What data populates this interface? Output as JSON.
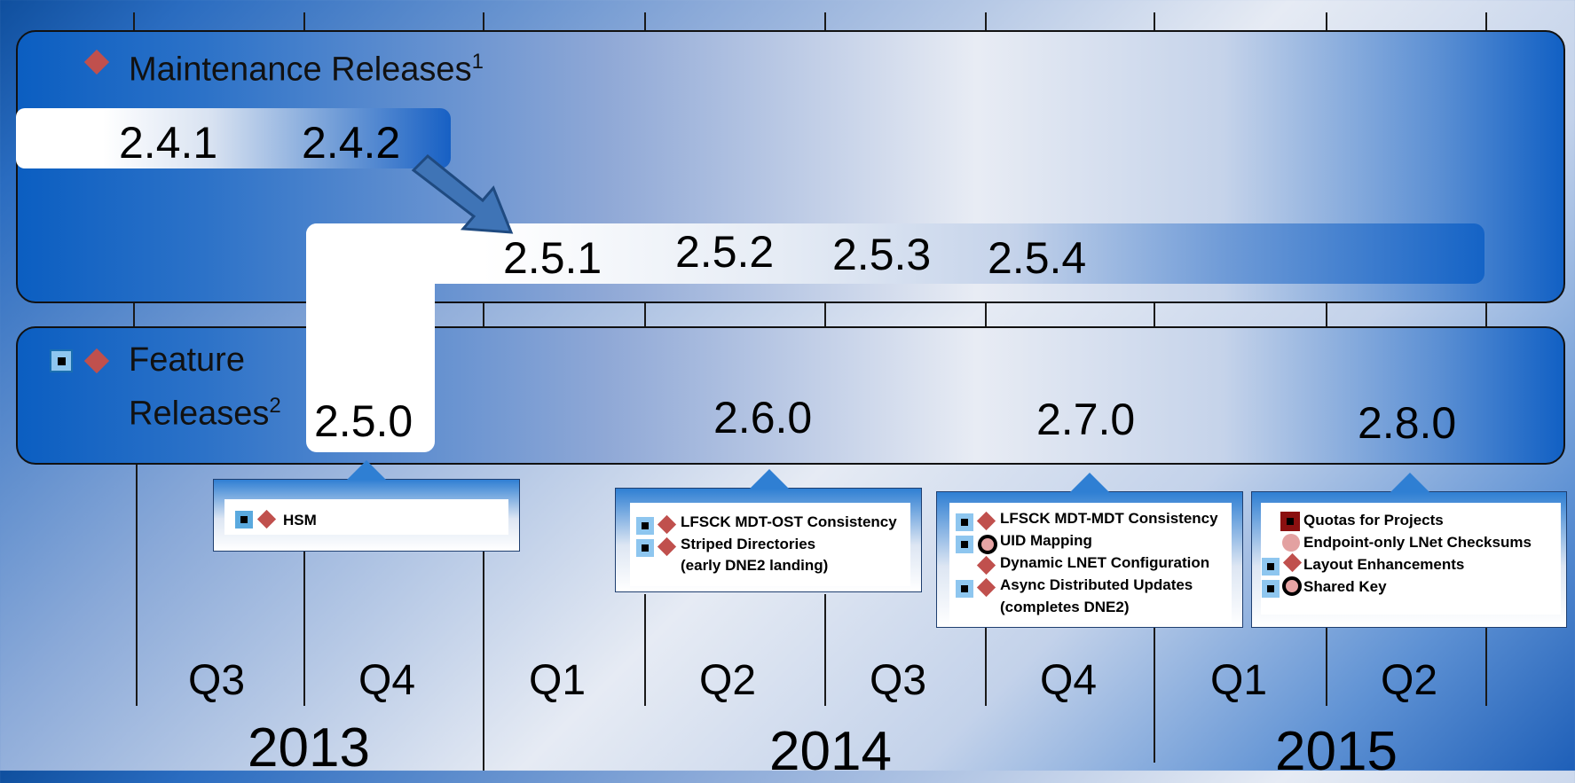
{
  "maintenance": {
    "title": "Maintenance Releases",
    "footnote": "1",
    "versions_row1": [
      "2.4.1",
      "2.4.2"
    ],
    "versions_row2": [
      "2.5.1",
      "2.5.2",
      "2.5.3",
      "2.5.4"
    ]
  },
  "feature": {
    "title_line1": "Feature",
    "title_line2": "Releases",
    "footnote": "2",
    "versions": [
      "2.5.0",
      "2.6.0",
      "2.7.0",
      "2.8.0"
    ]
  },
  "callouts": {
    "c250": {
      "items": [
        "HSM"
      ]
    },
    "c260": {
      "items": [
        "LFSCK MDT-OST Consistency",
        "Striped Directories",
        "(early DNE2 landing)"
      ]
    },
    "c270": {
      "items": [
        "LFSCK MDT-MDT Consistency",
        "UID Mapping",
        "Dynamic LNET Configuration",
        "Async Distributed Updates",
        "(completes DNE2)"
      ]
    },
    "c280": {
      "items": [
        "Quotas for Projects",
        "Endpoint-only LNet Checksums",
        "Layout Enhancements",
        "Shared Key"
      ]
    }
  },
  "timeline": {
    "quarters": [
      "Q3",
      "Q4",
      "Q1",
      "Q2",
      "Q3",
      "Q4",
      "Q1",
      "Q2"
    ],
    "years": [
      "2013",
      "2014",
      "2015"
    ]
  },
  "colors": {
    "maintenance_marker": "#c0504d",
    "feature_marker": "#8ec6ef",
    "band_blue": "#0b5ec1"
  },
  "icons": [
    "red-diamond-icon",
    "blue-square-icon",
    "ring-icon",
    "pink-circle-icon",
    "dark-red-square-icon",
    "arrow-icon"
  ]
}
